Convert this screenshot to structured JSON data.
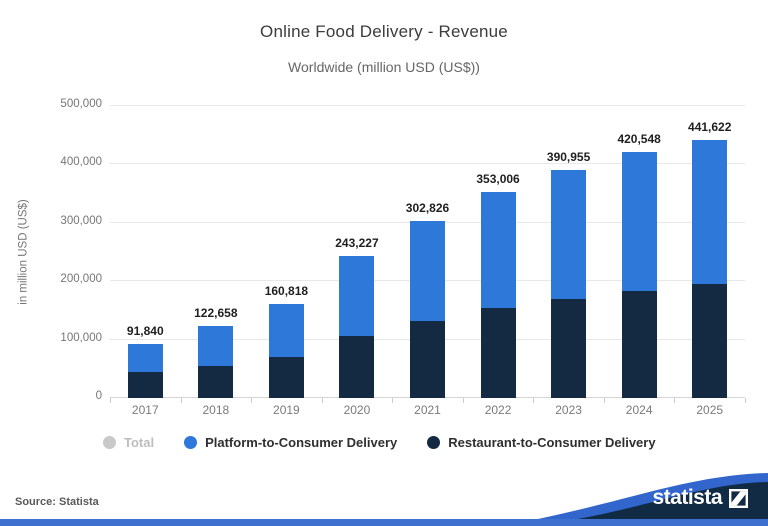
{
  "header": {
    "title": "Online Food Delivery - Revenue",
    "subtitle": "Worldwide (million USD (US$))"
  },
  "legend": {
    "items": [
      {
        "label": "Total",
        "color": "#c9c9c9",
        "muted": true
      },
      {
        "label": "Platform-to-Consumer Delivery",
        "color": "#2e78d9",
        "muted": false
      },
      {
        "label": "Restaurant-to-Consumer Delivery",
        "color": "#132a42",
        "muted": false
      }
    ]
  },
  "footer": {
    "source": "Source: Statista",
    "brand": "statista",
    "footer_navy": "#122b44",
    "footer_blue": "#3e70cf",
    "stripe_blue": "#3366cc"
  },
  "chart_data": {
    "type": "bar",
    "stacked": true,
    "title": "Online Food Delivery - Revenue",
    "subtitle": "Worldwide (million USD (US$))",
    "categories": [
      "2017",
      "2018",
      "2019",
      "2020",
      "2021",
      "2022",
      "2023",
      "2024",
      "2025"
    ],
    "series": [
      {
        "name": "Restaurant-to-Consumer Delivery",
        "color": "#132a42",
        "values_estimated_from_pixels": true,
        "values": [
          44000,
          54000,
          70000,
          107000,
          132000,
          154000,
          170000,
          183000,
          196000
        ]
      },
      {
        "name": "Platform-to-Consumer Delivery",
        "color": "#2e78d9",
        "values_estimated_from_pixels": true,
        "values": [
          47840,
          68658,
          90818,
          136227,
          170826,
          199006,
          220955,
          237548,
          245622
        ]
      }
    ],
    "totals": [
      91840,
      122658,
      160818,
      243227,
      302826,
      353006,
      390955,
      420548,
      441622
    ],
    "total_labels": [
      "91,840",
      "122,658",
      "160,818",
      "243,227",
      "302,826",
      "353,006",
      "390,955",
      "420,548",
      "441,622"
    ],
    "xlabel": "",
    "ylabel": "in million USD (US$)",
    "ylim": [
      0,
      500000
    ],
    "yticks": [
      "0",
      "100,000",
      "200,000",
      "300,000",
      "400,000",
      "500,000"
    ],
    "grid": true,
    "legend_position": "bottom"
  }
}
